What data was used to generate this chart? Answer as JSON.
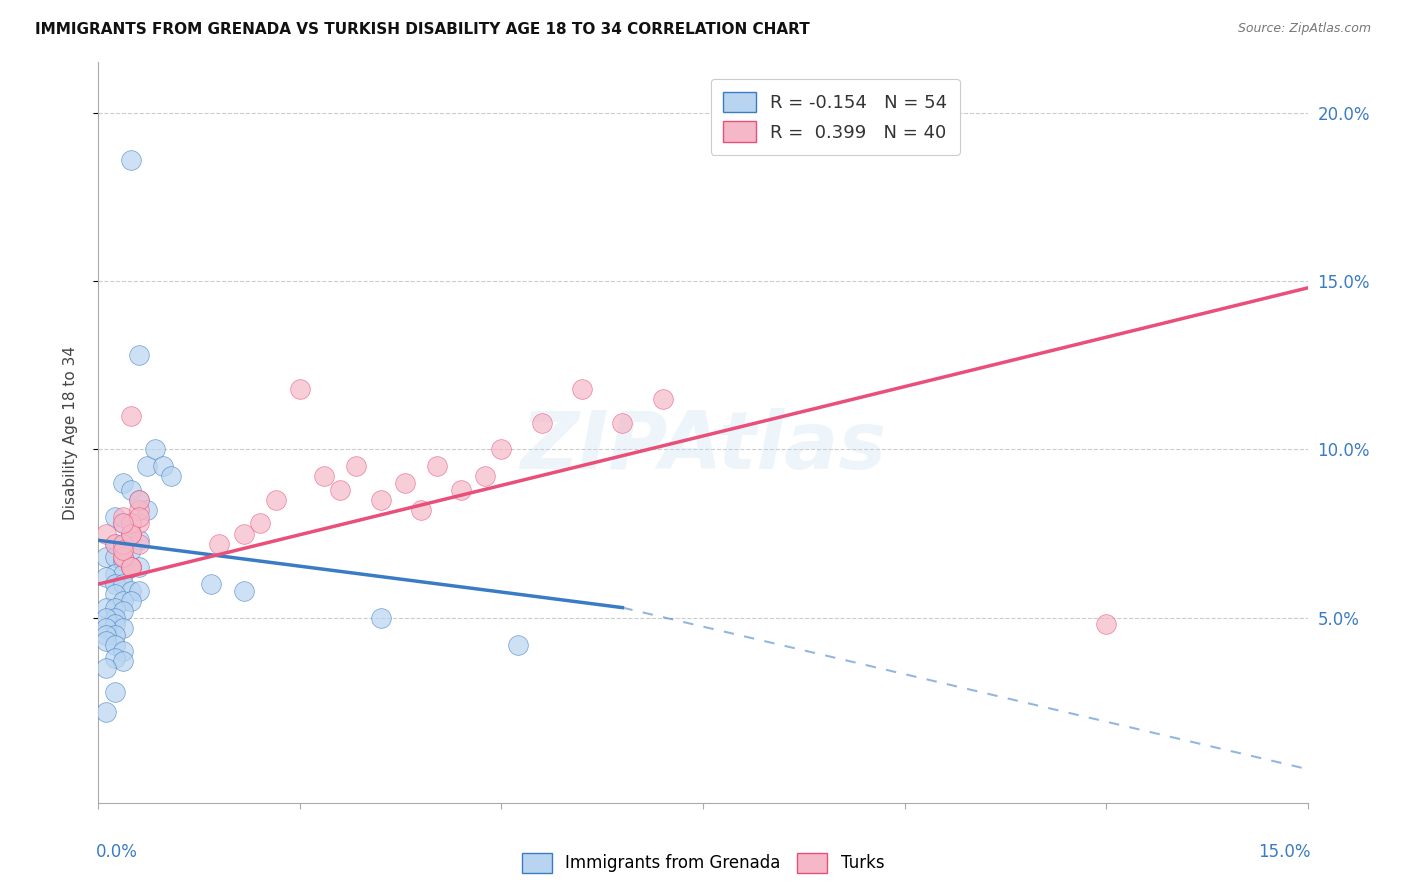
{
  "title": "IMMIGRANTS FROM GRENADA VS TURKISH DISABILITY AGE 18 TO 34 CORRELATION CHART",
  "source": "Source: ZipAtlas.com",
  "ylabel": "Disability Age 18 to 34",
  "legend1_label": "R = -0.154   N = 54",
  "legend2_label": "R =  0.399   N = 40",
  "legend1_fill": "#b8d4f0",
  "legend2_fill": "#f5b8c8",
  "line1_color": "#3a7cc4",
  "line2_color": "#e8507a",
  "watermark": "ZIPAtlas",
  "xmin": 0.0,
  "xmax": 0.15,
  "ymin": -0.005,
  "ymax": 0.215,
  "ytick_vals": [
    0.05,
    0.1,
    0.15,
    0.2
  ],
  "ytick_labels": [
    "5.0%",
    "10.0%",
    "15.0%",
    "20.0%"
  ],
  "scatter1_x": [
    0.004,
    0.005,
    0.006,
    0.007,
    0.008,
    0.009,
    0.003,
    0.004,
    0.005,
    0.006,
    0.002,
    0.003,
    0.004,
    0.005,
    0.002,
    0.003,
    0.004,
    0.001,
    0.002,
    0.003,
    0.004,
    0.005,
    0.002,
    0.003,
    0.001,
    0.002,
    0.003,
    0.004,
    0.005,
    0.002,
    0.003,
    0.004,
    0.001,
    0.002,
    0.003,
    0.002,
    0.001,
    0.002,
    0.003,
    0.001,
    0.002,
    0.001,
    0.001,
    0.002,
    0.003,
    0.002,
    0.003,
    0.001,
    0.002,
    0.001,
    0.014,
    0.018,
    0.035,
    0.052
  ],
  "scatter1_y": [
    0.186,
    0.128,
    0.095,
    0.1,
    0.095,
    0.092,
    0.09,
    0.088,
    0.085,
    0.082,
    0.08,
    0.078,
    0.075,
    0.073,
    0.072,
    0.07,
    0.07,
    0.068,
    0.068,
    0.067,
    0.065,
    0.065,
    0.063,
    0.063,
    0.062,
    0.06,
    0.06,
    0.058,
    0.058,
    0.057,
    0.055,
    0.055,
    0.053,
    0.053,
    0.052,
    0.05,
    0.05,
    0.048,
    0.047,
    0.047,
    0.045,
    0.045,
    0.043,
    0.042,
    0.04,
    0.038,
    0.037,
    0.035,
    0.028,
    0.022,
    0.06,
    0.058,
    0.05,
    0.042
  ],
  "scatter2_x": [
    0.001,
    0.002,
    0.003,
    0.004,
    0.003,
    0.005,
    0.004,
    0.005,
    0.003,
    0.004,
    0.005,
    0.004,
    0.005,
    0.003,
    0.004,
    0.003,
    0.004,
    0.005,
    0.003,
    0.004,
    0.015,
    0.018,
    0.02,
    0.025,
    0.022,
    0.028,
    0.03,
    0.032,
    0.035,
    0.038,
    0.04,
    0.042,
    0.045,
    0.048,
    0.05,
    0.055,
    0.06,
    0.065,
    0.07,
    0.125
  ],
  "scatter2_y": [
    0.075,
    0.072,
    0.068,
    0.065,
    0.08,
    0.078,
    0.065,
    0.072,
    0.068,
    0.075,
    0.082,
    0.078,
    0.085,
    0.072,
    0.065,
    0.07,
    0.075,
    0.08,
    0.078,
    0.11,
    0.072,
    0.075,
    0.078,
    0.118,
    0.085,
    0.092,
    0.088,
    0.095,
    0.085,
    0.09,
    0.082,
    0.095,
    0.088,
    0.092,
    0.1,
    0.108,
    0.118,
    0.108,
    0.115,
    0.048
  ],
  "background_color": "#ffffff",
  "grid_color": "#cccccc",
  "line1_x_solid_end": 0.065,
  "line1_y_start": 0.073,
  "line1_y_solid_end": 0.053,
  "line1_y_end": 0.005,
  "line2_y_start": 0.06,
  "line2_y_end": 0.148
}
